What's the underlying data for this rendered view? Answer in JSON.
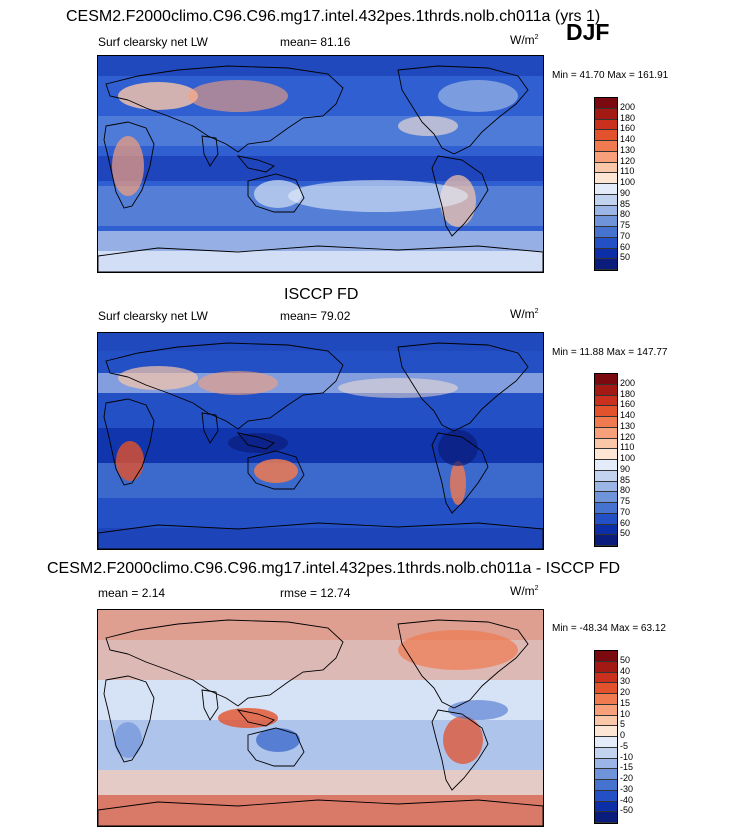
{
  "header": {
    "title": "CESM2.F2000climo.C96.C96.mg17.intel.432pes.1thrds.nolb.ch011a (yrs 1)",
    "season": "DJF"
  },
  "panels": [
    {
      "title": "",
      "left_label": "Surf clearsky net LW",
      "center_label": "mean=  81.16",
      "units": "W/m",
      "units_sup": "2",
      "minmax": "Min =  41.70 Max = 161.91",
      "colorbar": {
        "labels": [
          "200",
          "180",
          "160",
          "140",
          "130",
          "120",
          "110",
          "100",
          "90",
          "85",
          "80",
          "75",
          "70",
          "60",
          "50"
        ],
        "colors": [
          "#7a0a10",
          "#a31a14",
          "#c9301d",
          "#e2522c",
          "#f07b50",
          "#f7a07a",
          "#fbc7a9",
          "#fde6d4",
          "#e3ecf8",
          "#c2d3f0",
          "#9bb6e6",
          "#6f94da",
          "#4773d0",
          "#2350c4",
          "#0c2ea6",
          "#0a1c7c"
        ]
      }
    },
    {
      "title": "ISCCP FD",
      "left_label": "Surf clearsky net LW",
      "center_label": "mean=  79.02",
      "units": "W/m",
      "units_sup": "2",
      "minmax": "Min =  11.88 Max = 147.77",
      "colorbar": {
        "labels": [
          "200",
          "180",
          "160",
          "140",
          "130",
          "120",
          "110",
          "100",
          "90",
          "85",
          "80",
          "75",
          "70",
          "60",
          "50"
        ],
        "colors": [
          "#7a0a10",
          "#a31a14",
          "#c9301d",
          "#e2522c",
          "#f07b50",
          "#f7a07a",
          "#fbc7a9",
          "#fde6d4",
          "#e3ecf8",
          "#c2d3f0",
          "#9bb6e6",
          "#6f94da",
          "#4773d0",
          "#2350c4",
          "#0c2ea6",
          "#0a1c7c"
        ]
      }
    },
    {
      "title": "CESM2.F2000climo.C96.C96.mg17.intel.432pes.1thrds.nolb.ch011a - ISCCP FD",
      "left_label": "mean =   2.14",
      "center_label": "rmse =  12.74",
      "units": "W/m",
      "units_sup": "2",
      "minmax": "Min = -48.34 Max =  63.12",
      "colorbar": {
        "labels": [
          "50",
          "40",
          "30",
          "20",
          "15",
          "10",
          "5",
          "0",
          "-5",
          "-10",
          "-15",
          "-20",
          "-30",
          "-40",
          "-50"
        ],
        "colors": [
          "#7a0a10",
          "#a31a14",
          "#c9301d",
          "#e2522c",
          "#f07b50",
          "#f7a07a",
          "#fbc7a9",
          "#fde6d4",
          "#e3ecf8",
          "#c2d3f0",
          "#9bb6e6",
          "#6f94da",
          "#4773d0",
          "#2350c4",
          "#0c2ea6",
          "#0a1c7c"
        ]
      }
    }
  ],
  "chart_data": [
    {
      "type": "heatmap",
      "title": "CESM2.F2000climo.C96.C96.mg17.intel.432pes.1thrds.nolb.ch011a (yrs 1)",
      "variable": "Surf clearsky net LW",
      "season": "DJF",
      "units": "W/m2",
      "mean": 81.16,
      "min": 41.7,
      "max": 161.91,
      "levels": [
        50,
        60,
        70,
        75,
        80,
        85,
        90,
        100,
        110,
        120,
        130,
        140,
        160,
        180,
        200
      ]
    },
    {
      "type": "heatmap",
      "title": "ISCCP FD",
      "variable": "Surf clearsky net LW",
      "units": "W/m2",
      "mean": 79.02,
      "min": 11.88,
      "max": 147.77,
      "levels": [
        50,
        60,
        70,
        75,
        80,
        85,
        90,
        100,
        110,
        120,
        130,
        140,
        160,
        180,
        200
      ]
    },
    {
      "type": "heatmap",
      "title": "CESM2.F2000climo.C96.C96.mg17.intel.432pes.1thrds.nolb.ch011a - ISCCP FD",
      "units": "W/m2",
      "mean": 2.14,
      "rmse": 12.74,
      "min": -48.34,
      "max": 63.12,
      "levels": [
        -50,
        -40,
        -30,
        -20,
        -15,
        -10,
        -5,
        0,
        5,
        10,
        15,
        20,
        30,
        40,
        50
      ]
    }
  ]
}
